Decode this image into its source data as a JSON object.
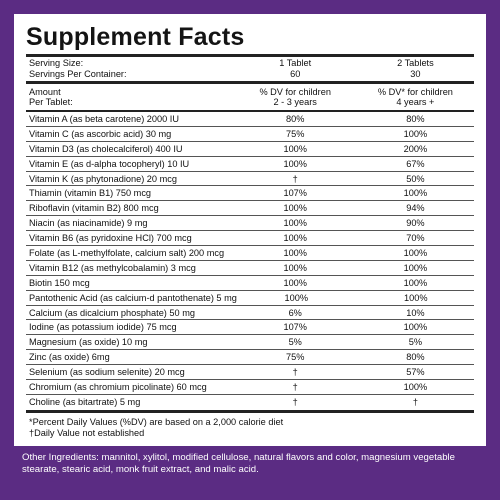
{
  "title": "Supplement Facts",
  "serving": {
    "size_label": "Serving Size:",
    "size_children_2_3": "1 Tablet",
    "size_children_4": "2 Tablets",
    "per_container_label": "Servings Per Container:",
    "per_container_2_3": "60",
    "per_container_4": "30"
  },
  "header": {
    "amount_line1": "Amount",
    "amount_line2": "Per Tablet:",
    "col2_line1": "% DV for children",
    "col2_line2": "2 - 3 years",
    "col3_line1": "% DV* for children",
    "col3_line2": "4 years +"
  },
  "nutrients": [
    {
      "name": "Vitamin A (as beta carotene) 2000 IU",
      "dv_2_3": "80%",
      "dv_4": "80%"
    },
    {
      "name": "Vitamin C (as ascorbic acid) 30 mg",
      "dv_2_3": "75%",
      "dv_4": "100%"
    },
    {
      "name": "Vitamin D3 (as cholecalciferol) 400 IU",
      "dv_2_3": "100%",
      "dv_4": "200%"
    },
    {
      "name": "Vitamin E (as d-alpha tocopheryl) 10 IU",
      "dv_2_3": "100%",
      "dv_4": "67%"
    },
    {
      "name": "Vitamin K (as phytonadione) 20 mcg",
      "dv_2_3": "†",
      "dv_4": "50%"
    },
    {
      "name": "Thiamin (vitamin B1) 750 mcg",
      "dv_2_3": "107%",
      "dv_4": "100%"
    },
    {
      "name": "Riboflavin (vitamin B2) 800 mcg",
      "dv_2_3": "100%",
      "dv_4": "94%"
    },
    {
      "name": "Niacin (as niacinamide) 9 mg",
      "dv_2_3": "100%",
      "dv_4": "90%"
    },
    {
      "name": "Vitamin B6 (as pyridoxine HCl) 700 mcg",
      "dv_2_3": "100%",
      "dv_4": "70%"
    },
    {
      "name": "Folate (as L-methylfolate, calcium salt) 200 mcg",
      "dv_2_3": "100%",
      "dv_4": "100%"
    },
    {
      "name": "Vitamin B12 (as methylcobalamin) 3 mcg",
      "dv_2_3": "100%",
      "dv_4": "100%"
    },
    {
      "name": "Biotin 150 mcg",
      "dv_2_3": "100%",
      "dv_4": "100%"
    },
    {
      "name": "Pantothenic Acid (as calcium-d pantothenate) 5 mg",
      "dv_2_3": "100%",
      "dv_4": "100%"
    },
    {
      "name": "Calcium (as dicalcium phosphate) 50 mg",
      "dv_2_3": "6%",
      "dv_4": "10%"
    },
    {
      "name": "Iodine (as potassium iodide) 75 mcg",
      "dv_2_3": "107%",
      "dv_4": "100%"
    },
    {
      "name": "Magnesium (as oxide) 10 mg",
      "dv_2_3": "5%",
      "dv_4": "5%"
    },
    {
      "name": "Zinc (as oxide) 6mg",
      "dv_2_3": "75%",
      "dv_4": "80%"
    },
    {
      "name": "Selenium (as sodium selenite) 20 mcg",
      "dv_2_3": "†",
      "dv_4": "57%"
    },
    {
      "name": "Chromium (as chromium picolinate) 60 mcg",
      "dv_2_3": "†",
      "dv_4": "100%"
    },
    {
      "name": "Choline (as bitartrate) 5 mg",
      "dv_2_3": "†",
      "dv_4": "†"
    }
  ],
  "footnotes": {
    "percent_dv": "*Percent Daily Values (%DV) are based on a 2,000 calorie diet",
    "dagger": "†Daily Value not established"
  },
  "other_ingredients": "Other Ingredients: mannitol, xylitol, modified cellulose, natural flavors and color, magnesium vegetable stearate, stearic acid, monk fruit extract, and malic acid.",
  "colors": {
    "background": "#5b2c83",
    "panel": "#ffffff",
    "text": "#111111"
  }
}
